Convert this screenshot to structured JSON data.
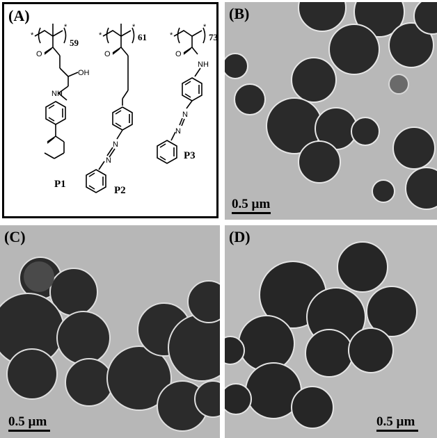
{
  "panels": {
    "a": {
      "label": "(A)",
      "structures": [
        {
          "name": "P1",
          "subscript": "59",
          "groups": [
            "OH",
            "NH"
          ]
        },
        {
          "name": "P2",
          "subscript": "61",
          "groups": [
            "N",
            "N"
          ]
        },
        {
          "name": "P3",
          "subscript": "73",
          "groups": [
            "NH",
            "N",
            "N"
          ]
        }
      ],
      "atom_o": "O",
      "end_group": "*"
    },
    "b": {
      "label": "(B)",
      "scale_bar": "0.5 µm"
    },
    "c": {
      "label": "(C)",
      "scale_bar": "0.5 µm"
    },
    "d": {
      "label": "(D)",
      "scale_bar": "0.5 µm"
    }
  },
  "colors": {
    "tem_background": "#b9b9b9",
    "particle_core": "#262626",
    "particle_rim": "#5a5a5a"
  }
}
